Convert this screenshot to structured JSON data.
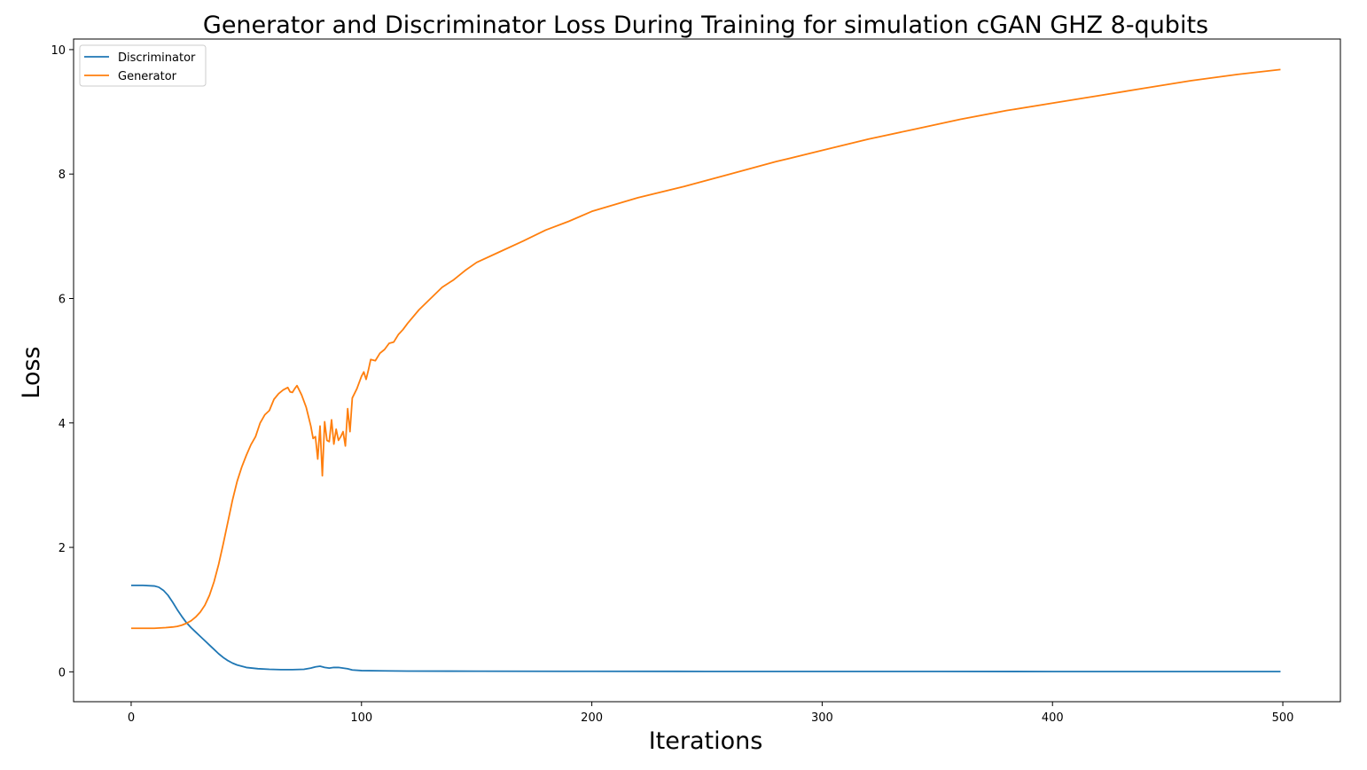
{
  "chart_data": {
    "type": "line",
    "title": "Generator and Discriminator Loss During Training for simulation cGAN GHZ 8-qubits",
    "xlabel": "Iterations",
    "ylabel": "Loss",
    "xlim": [
      -25,
      525
    ],
    "ylim": [
      -0.48,
      10.17
    ],
    "xticks": [
      0,
      100,
      200,
      300,
      400,
      500
    ],
    "yticks": [
      0,
      2,
      4,
      6,
      8,
      10
    ],
    "grid": false,
    "legend_position": "upper-left",
    "series": [
      {
        "name": "Discriminator",
        "color": "#1f77b4",
        "x": [
          0,
          5,
          10,
          12,
          14,
          16,
          18,
          20,
          22,
          24,
          26,
          28,
          30,
          32,
          34,
          36,
          38,
          40,
          42,
          44,
          46,
          48,
          50,
          55,
          60,
          65,
          70,
          75,
          78,
          80,
          82,
          84,
          86,
          88,
          90,
          92,
          94,
          96,
          100,
          110,
          120,
          150,
          200,
          250,
          300,
          350,
          400,
          450,
          499
        ],
        "y": [
          1.39,
          1.39,
          1.38,
          1.36,
          1.31,
          1.23,
          1.12,
          1.0,
          0.89,
          0.79,
          0.71,
          0.64,
          0.57,
          0.5,
          0.43,
          0.36,
          0.29,
          0.23,
          0.18,
          0.14,
          0.11,
          0.09,
          0.07,
          0.05,
          0.04,
          0.035,
          0.035,
          0.04,
          0.06,
          0.08,
          0.09,
          0.07,
          0.06,
          0.07,
          0.07,
          0.06,
          0.05,
          0.03,
          0.02,
          0.015,
          0.012,
          0.01,
          0.008,
          0.007,
          0.006,
          0.006,
          0.005,
          0.005,
          0.005
        ]
      },
      {
        "name": "Generator",
        "color": "#ff7f0e",
        "x": [
          0,
          10,
          15,
          18,
          20,
          22,
          24,
          26,
          28,
          30,
          32,
          34,
          36,
          38,
          40,
          42,
          44,
          46,
          48,
          50,
          52,
          54,
          56,
          58,
          60,
          62,
          64,
          66,
          68,
          69,
          70,
          71,
          72,
          74,
          76,
          78,
          79,
          80,
          81,
          82,
          83,
          84,
          85,
          86,
          87,
          88,
          89,
          90,
          91,
          92,
          93,
          94,
          95,
          96,
          98,
          100,
          101,
          102,
          103,
          104,
          106,
          108,
          110,
          112,
          114,
          116,
          118,
          120,
          125,
          130,
          135,
          140,
          145,
          150,
          160,
          170,
          180,
          190,
          200,
          220,
          240,
          260,
          280,
          300,
          320,
          340,
          360,
          380,
          400,
          420,
          440,
          460,
          480,
          499
        ],
        "y": [
          0.7,
          0.7,
          0.71,
          0.72,
          0.73,
          0.75,
          0.78,
          0.82,
          0.88,
          0.96,
          1.07,
          1.23,
          1.45,
          1.73,
          2.06,
          2.41,
          2.76,
          3.06,
          3.29,
          3.48,
          3.65,
          3.78,
          4.0,
          4.13,
          4.2,
          4.38,
          4.47,
          4.53,
          4.57,
          4.5,
          4.49,
          4.55,
          4.6,
          4.45,
          4.25,
          3.95,
          3.75,
          3.78,
          3.42,
          3.95,
          3.15,
          4.02,
          3.72,
          3.7,
          4.05,
          3.66,
          3.9,
          3.72,
          3.78,
          3.86,
          3.63,
          4.23,
          3.86,
          4.4,
          4.55,
          4.75,
          4.82,
          4.7,
          4.85,
          5.02,
          5.0,
          5.12,
          5.18,
          5.28,
          5.3,
          5.42,
          5.5,
          5.6,
          5.82,
          6.0,
          6.18,
          6.3,
          6.45,
          6.58,
          6.75,
          6.92,
          7.1,
          7.24,
          7.4,
          7.62,
          7.8,
          8.0,
          8.2,
          8.38,
          8.56,
          8.72,
          8.88,
          9.02,
          9.14,
          9.26,
          9.38,
          9.5,
          9.6,
          9.68
        ]
      }
    ]
  }
}
